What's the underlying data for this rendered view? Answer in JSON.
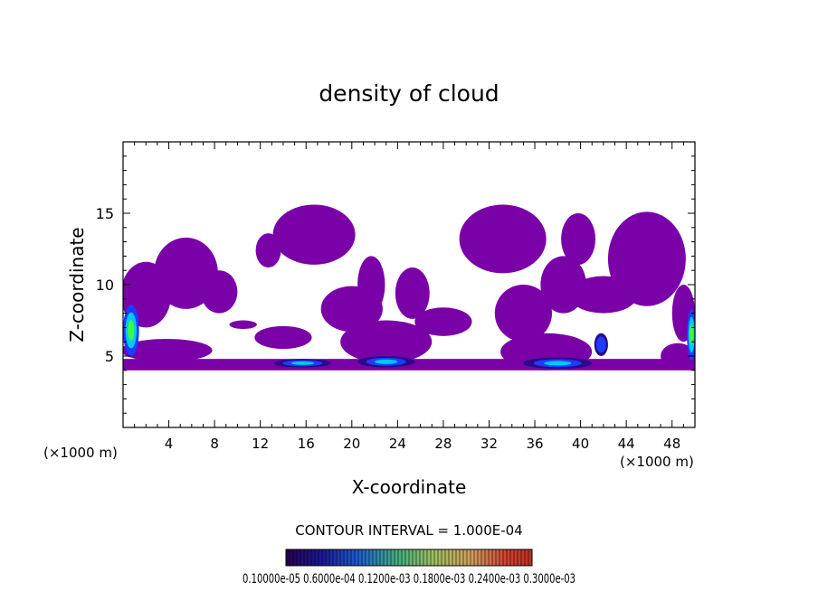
{
  "chart_data": {
    "type": "heatmap",
    "title": "density of cloud",
    "xlabel": "X-coordinate",
    "ylabel": "Z-coordinate",
    "x_unit_left": "(×1000 m)",
    "x_unit_right": "(×1000 m)",
    "xlim": [
      0,
      50
    ],
    "ylim": [
      0,
      20
    ],
    "x_ticks": [
      4,
      8,
      12,
      16,
      20,
      24,
      28,
      32,
      36,
      40,
      44,
      48
    ],
    "y_ticks": [
      5,
      10,
      15
    ],
    "contour_interval_text": "CONTOUR INTERVAL = 1.000E-04",
    "colorbar_labels_text": "0.10000e-05 0.6000e-04 0.1200e-03 0.1800e-03 0.2400e-03 0.3000e-03",
    "colorbar_range": [
      1e-06,
      0.0003
    ],
    "colors": {
      "base_fill": "#7a00a8",
      "dark_core": "#2a0a8a",
      "blue": "#1e3cff",
      "cyan": "#00c8ff",
      "green": "#3cff3c"
    },
    "cloud_blobs": [
      {
        "cx": 2,
        "cy": 9.3,
        "rx": 2.2,
        "ry": 2.3
      },
      {
        "cx": 5.5,
        "cy": 10.8,
        "rx": 2.8,
        "ry": 2.5
      },
      {
        "cx": 8.4,
        "cy": 9.5,
        "rx": 1.6,
        "ry": 1.5
      },
      {
        "cx": 3.8,
        "cy": 5.4,
        "rx": 4.0,
        "ry": 0.8
      },
      {
        "cx": 10.5,
        "cy": 7.2,
        "rx": 1.2,
        "ry": 0.3
      },
      {
        "cx": 12.7,
        "cy": 12.4,
        "rx": 1.1,
        "ry": 1.2
      },
      {
        "cx": 16.7,
        "cy": 13.5,
        "rx": 3.6,
        "ry": 2.1
      },
      {
        "cx": 14.0,
        "cy": 6.3,
        "rx": 2.5,
        "ry": 0.8
      },
      {
        "cx": 15.8,
        "cy": 4.4,
        "rx": 3.0,
        "ry": 0.3
      },
      {
        "cx": 20.0,
        "cy": 8.3,
        "rx": 2.7,
        "ry": 1.6
      },
      {
        "cx": 21.7,
        "cy": 10.0,
        "rx": 1.2,
        "ry": 2.0
      },
      {
        "cx": 23.0,
        "cy": 6.0,
        "rx": 4.0,
        "ry": 1.5
      },
      {
        "cx": 25.3,
        "cy": 9.4,
        "rx": 1.5,
        "ry": 1.8
      },
      {
        "cx": 28.0,
        "cy": 7.4,
        "rx": 2.5,
        "ry": 1.0
      },
      {
        "cx": 33.2,
        "cy": 13.2,
        "rx": 3.8,
        "ry": 2.4
      },
      {
        "cx": 35.0,
        "cy": 8.0,
        "rx": 2.5,
        "ry": 2.0
      },
      {
        "cx": 38.5,
        "cy": 10.0,
        "rx": 2.0,
        "ry": 2.0
      },
      {
        "cx": 37.0,
        "cy": 5.3,
        "rx": 4.0,
        "ry": 1.3
      },
      {
        "cx": 39.8,
        "cy": 13.2,
        "rx": 1.5,
        "ry": 1.8
      },
      {
        "cx": 42.0,
        "cy": 9.3,
        "rx": 3.0,
        "ry": 1.3
      },
      {
        "cx": 45.8,
        "cy": 11.8,
        "rx": 3.4,
        "ry": 3.3
      },
      {
        "cx": 48.5,
        "cy": 5.0,
        "rx": 1.5,
        "ry": 0.9
      },
      {
        "cx": 49.0,
        "cy": 8.0,
        "rx": 1.0,
        "ry": 2.0
      }
    ],
    "intense_patches": [
      {
        "cx": 0.7,
        "cy": 6.8,
        "rx": 0.7,
        "ry": 1.8,
        "level": "green"
      },
      {
        "cx": 15.7,
        "cy": 4.5,
        "rx": 2.5,
        "ry": 0.3,
        "level": "blue"
      },
      {
        "cx": 23.0,
        "cy": 4.6,
        "rx": 2.5,
        "ry": 0.4,
        "level": "blue"
      },
      {
        "cx": 38.0,
        "cy": 4.5,
        "rx": 3.0,
        "ry": 0.4,
        "level": "blue"
      },
      {
        "cx": 41.8,
        "cy": 5.8,
        "rx": 0.6,
        "ry": 0.8,
        "level": "dark"
      },
      {
        "cx": 49.7,
        "cy": 6.5,
        "rx": 0.4,
        "ry": 1.8,
        "level": "green"
      }
    ]
  }
}
